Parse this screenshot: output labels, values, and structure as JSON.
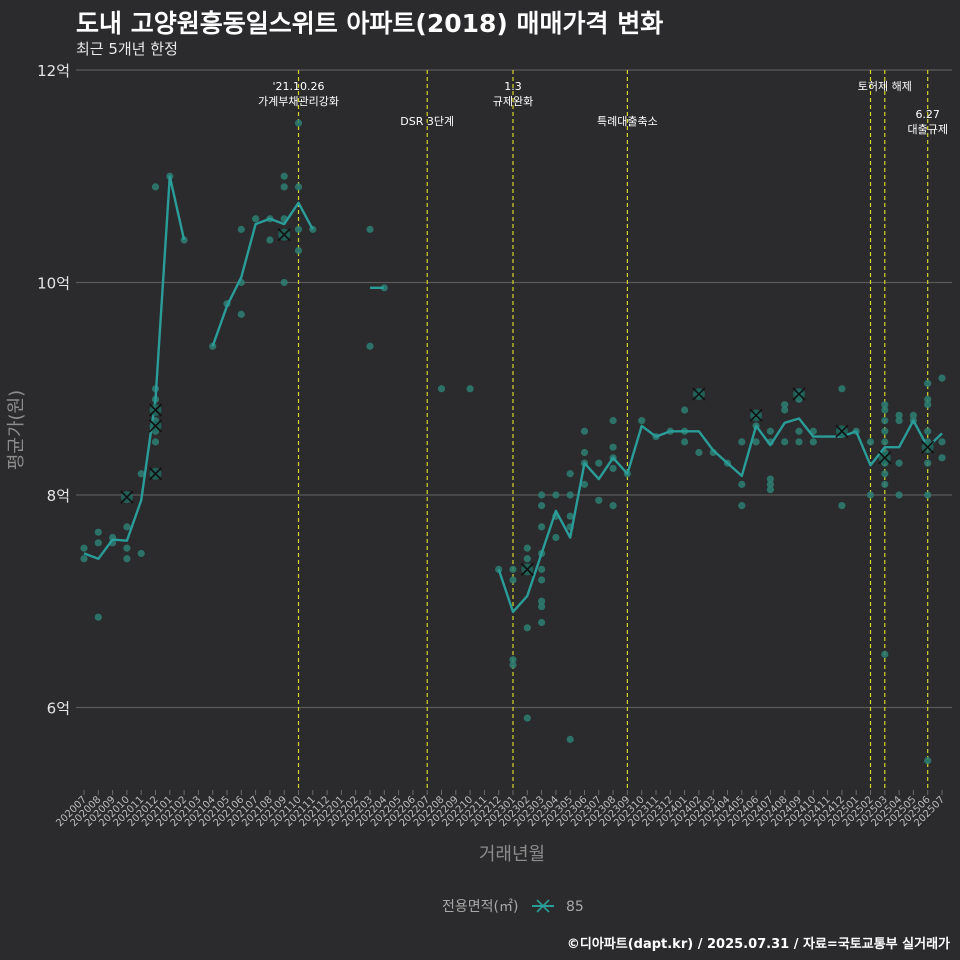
{
  "title": "도내 고양원흥동일스위트 아파트(2018) 매매가격 변화",
  "subtitle": "최근 5개년 한정",
  "caption": "©디아파트(dapt.kr) / 2025.07.31 / 자료=국토교통부 실거래가",
  "colors": {
    "background": "#2b2a2c",
    "series": "#2a9d99",
    "point": "#2e7f74",
    "vline": "#d4d629",
    "grid": "#5a5a5a"
  },
  "chart_data": {
    "type": "line",
    "xlabel": "거래년월",
    "ylabel": "평균가(원)",
    "yticks": [
      {
        "value": 6,
        "label": "6억"
      },
      {
        "value": 8,
        "label": "8억"
      },
      {
        "value": 10,
        "label": "10억"
      },
      {
        "value": 12,
        "label": "12억"
      }
    ],
    "ylim": [
      5.2,
      12.2
    ],
    "grid": true,
    "legend": {
      "title": "전용면적(㎡)",
      "entries": [
        "85"
      ],
      "position": "bottom"
    },
    "categories": [
      "202007",
      "202008",
      "202009",
      "202010",
      "202011",
      "202012",
      "202101",
      "202102",
      "202103",
      "202104",
      "202105",
      "202106",
      "202107",
      "202108",
      "202109",
      "202110",
      "202111",
      "202112",
      "202201",
      "202202",
      "202203",
      "202204",
      "202205",
      "202206",
      "202207",
      "202208",
      "202209",
      "202210",
      "202211",
      "202212",
      "202301",
      "202302",
      "202303",
      "202304",
      "202305",
      "202306",
      "202307",
      "202308",
      "202309",
      "202310",
      "202311",
      "202312",
      "202401",
      "202402",
      "202403",
      "202404",
      "202405",
      "202406",
      "202407",
      "202408",
      "202409",
      "202410",
      "202411",
      "202412",
      "202501",
      "202502",
      "202503",
      "202504",
      "202505",
      "202506",
      "202507"
    ],
    "series": [
      {
        "name": "85",
        "segments": [
          {
            "x": [
              "202007",
              "202008",
              "202009",
              "202010",
              "202011",
              "202012",
              "202101",
              "202102"
            ],
            "values": [
              7.45,
              7.4,
              7.58,
              7.57,
              7.95,
              8.9,
              11.0,
              10.4
            ]
          },
          {
            "x": [
              "202104",
              "202105",
              "202106",
              "202107",
              "202108",
              "202109",
              "202110",
              "202111"
            ],
            "values": [
              9.4,
              9.78,
              10.05,
              10.55,
              10.6,
              10.55,
              10.75,
              10.5
            ]
          },
          {
            "x": [
              "202203",
              "202204"
            ],
            "values": [
              9.95,
              9.95
            ]
          },
          {
            "x": [
              "202212",
              "202301",
              "202302",
              "202303",
              "202304",
              "202305",
              "202306",
              "202307",
              "202308",
              "202309",
              "202310",
              "202311",
              "202312",
              "202401",
              "202402",
              "202403",
              "202404",
              "202405",
              "202406",
              "202407",
              "202408",
              "202409",
              "202410",
              "202411",
              "202412",
              "202501",
              "202502",
              "202503",
              "202504",
              "202505",
              "202506",
              "202507"
            ],
            "values": [
              7.3,
              6.9,
              7.05,
              7.45,
              7.85,
              7.6,
              8.3,
              8.15,
              8.35,
              8.2,
              8.65,
              8.55,
              8.6,
              8.6,
              8.6,
              8.42,
              8.3,
              8.18,
              8.65,
              8.47,
              8.68,
              8.72,
              8.55,
              8.55,
              8.55,
              8.6,
              8.28,
              8.45,
              8.45,
              8.7,
              8.45,
              8.58
            ]
          }
        ]
      }
    ],
    "points": [
      {
        "x": "202007",
        "y": 7.4
      },
      {
        "x": "202007",
        "y": 7.5
      },
      {
        "x": "202008",
        "y": 6.85
      },
      {
        "x": "202008",
        "y": 7.55
      },
      {
        "x": "202008",
        "y": 7.65
      },
      {
        "x": "202009",
        "y": 7.55
      },
      {
        "x": "202009",
        "y": 7.6
      },
      {
        "x": "202010",
        "y": 7.4
      },
      {
        "x": "202010",
        "y": 7.5
      },
      {
        "x": "202010",
        "y": 7.7
      },
      {
        "x": "202011",
        "y": 7.45
      },
      {
        "x": "202011",
        "y": 8.2
      },
      {
        "x": "202012",
        "y": 8.5
      },
      {
        "x": "202012",
        "y": 8.6
      },
      {
        "x": "202012",
        "y": 8.7
      },
      {
        "x": "202012",
        "y": 8.9
      },
      {
        "x": "202012",
        "y": 9.0
      },
      {
        "x": "202012",
        "y": 10.9
      },
      {
        "x": "202101",
        "y": 11.0
      },
      {
        "x": "202102",
        "y": 10.4
      },
      {
        "x": "202104",
        "y": 9.4
      },
      {
        "x": "202105",
        "y": 9.8
      },
      {
        "x": "202106",
        "y": 9.7
      },
      {
        "x": "202106",
        "y": 10.0
      },
      {
        "x": "202106",
        "y": 10.5
      },
      {
        "x": "202107",
        "y": 10.6
      },
      {
        "x": "202108",
        "y": 10.4
      },
      {
        "x": "202108",
        "y": 10.6
      },
      {
        "x": "202109",
        "y": 10.0
      },
      {
        "x": "202109",
        "y": 10.6
      },
      {
        "x": "202109",
        "y": 10.9
      },
      {
        "x": "202109",
        "y": 11.0
      },
      {
        "x": "202110",
        "y": 10.3
      },
      {
        "x": "202110",
        "y": 10.5
      },
      {
        "x": "202110",
        "y": 10.9
      },
      {
        "x": "202110",
        "y": 11.5
      },
      {
        "x": "202111",
        "y": 10.5
      },
      {
        "x": "202203",
        "y": 9.4
      },
      {
        "x": "202203",
        "y": 10.5
      },
      {
        "x": "202204",
        "y": 9.95
      },
      {
        "x": "202208",
        "y": 9.0
      },
      {
        "x": "202210",
        "y": 9.0
      },
      {
        "x": "202212",
        "y": 7.3
      },
      {
        "x": "202301",
        "y": 6.4
      },
      {
        "x": "202301",
        "y": 6.45
      },
      {
        "x": "202301",
        "y": 7.2
      },
      {
        "x": "202301",
        "y": 7.3
      },
      {
        "x": "202302",
        "y": 5.9
      },
      {
        "x": "202302",
        "y": 6.75
      },
      {
        "x": "202302",
        "y": 7.4
      },
      {
        "x": "202302",
        "y": 7.5
      },
      {
        "x": "202303",
        "y": 6.8
      },
      {
        "x": "202303",
        "y": 6.95
      },
      {
        "x": "202303",
        "y": 7.0
      },
      {
        "x": "202303",
        "y": 7.2
      },
      {
        "x": "202303",
        "y": 7.3
      },
      {
        "x": "202303",
        "y": 7.45
      },
      {
        "x": "202303",
        "y": 7.7
      },
      {
        "x": "202303",
        "y": 7.9
      },
      {
        "x": "202303",
        "y": 8.0
      },
      {
        "x": "202304",
        "y": 7.6
      },
      {
        "x": "202304",
        "y": 7.8
      },
      {
        "x": "202304",
        "y": 8.0
      },
      {
        "x": "202305",
        "y": 5.7
      },
      {
        "x": "202305",
        "y": 7.7
      },
      {
        "x": "202305",
        "y": 7.8
      },
      {
        "x": "202305",
        "y": 8.0
      },
      {
        "x": "202305",
        "y": 8.2
      },
      {
        "x": "202306",
        "y": 8.1
      },
      {
        "x": "202306",
        "y": 8.3
      },
      {
        "x": "202306",
        "y": 8.4
      },
      {
        "x": "202306",
        "y": 8.6
      },
      {
        "x": "202307",
        "y": 7.95
      },
      {
        "x": "202307",
        "y": 8.3
      },
      {
        "x": "202308",
        "y": 7.9
      },
      {
        "x": "202308",
        "y": 8.25
      },
      {
        "x": "202308",
        "y": 8.35
      },
      {
        "x": "202308",
        "y": 8.45
      },
      {
        "x": "202308",
        "y": 8.7
      },
      {
        "x": "202309",
        "y": 8.2
      },
      {
        "x": "202310",
        "y": 8.7
      },
      {
        "x": "202311",
        "y": 8.55
      },
      {
        "x": "202312",
        "y": 8.6
      },
      {
        "x": "202401",
        "y": 8.5
      },
      {
        "x": "202401",
        "y": 8.6
      },
      {
        "x": "202401",
        "y": 8.8
      },
      {
        "x": "202402",
        "y": 8.4
      },
      {
        "x": "202402",
        "y": 8.95
      },
      {
        "x": "202403",
        "y": 8.4
      },
      {
        "x": "202404",
        "y": 8.3
      },
      {
        "x": "202405",
        "y": 7.9
      },
      {
        "x": "202405",
        "y": 8.1
      },
      {
        "x": "202405",
        "y": 8.5
      },
      {
        "x": "202406",
        "y": 8.5
      },
      {
        "x": "202406",
        "y": 8.65
      },
      {
        "x": "202406",
        "y": 8.75
      },
      {
        "x": "202407",
        "y": 8.05
      },
      {
        "x": "202407",
        "y": 8.1
      },
      {
        "x": "202407",
        "y": 8.15
      },
      {
        "x": "202407",
        "y": 8.5
      },
      {
        "x": "202407",
        "y": 8.6
      },
      {
        "x": "202408",
        "y": 8.5
      },
      {
        "x": "202408",
        "y": 8.8
      },
      {
        "x": "202408",
        "y": 8.85
      },
      {
        "x": "202409",
        "y": 8.5
      },
      {
        "x": "202409",
        "y": 8.6
      },
      {
        "x": "202409",
        "y": 8.9
      },
      {
        "x": "202409",
        "y": 8.95
      },
      {
        "x": "202410",
        "y": 8.5
      },
      {
        "x": "202410",
        "y": 8.6
      },
      {
        "x": "202412",
        "y": 7.9
      },
      {
        "x": "202412",
        "y": 8.6
      },
      {
        "x": "202412",
        "y": 9.0
      },
      {
        "x": "202501",
        "y": 8.6
      },
      {
        "x": "202502",
        "y": 8.0
      },
      {
        "x": "202502",
        "y": 8.5
      },
      {
        "x": "202503",
        "y": 6.5
      },
      {
        "x": "202503",
        "y": 8.1
      },
      {
        "x": "202503",
        "y": 8.2
      },
      {
        "x": "202503",
        "y": 8.3
      },
      {
        "x": "202503",
        "y": 8.4
      },
      {
        "x": "202503",
        "y": 8.5
      },
      {
        "x": "202503",
        "y": 8.6
      },
      {
        "x": "202503",
        "y": 8.7
      },
      {
        "x": "202503",
        "y": 8.8
      },
      {
        "x": "202503",
        "y": 8.85
      },
      {
        "x": "202504",
        "y": 8.0
      },
      {
        "x": "202504",
        "y": 8.3
      },
      {
        "x": "202504",
        "y": 8.7
      },
      {
        "x": "202504",
        "y": 8.75
      },
      {
        "x": "202505",
        "y": 8.7
      },
      {
        "x": "202505",
        "y": 8.75
      },
      {
        "x": "202506",
        "y": 5.5
      },
      {
        "x": "202506",
        "y": 8.0
      },
      {
        "x": "202506",
        "y": 8.3
      },
      {
        "x": "202506",
        "y": 8.5
      },
      {
        "x": "202506",
        "y": 8.6
      },
      {
        "x": "202506",
        "y": 8.85
      },
      {
        "x": "202506",
        "y": 8.9
      },
      {
        "x": "202506",
        "y": 9.05
      },
      {
        "x": "202507",
        "y": 8.35
      },
      {
        "x": "202507",
        "y": 8.5
      },
      {
        "x": "202507",
        "y": 9.1
      }
    ],
    "highlights": [
      {
        "x": "202010",
        "y": 7.98
      },
      {
        "x": "202012",
        "y": 8.2
      },
      {
        "x": "202012",
        "y": 8.65
      },
      {
        "x": "202012",
        "y": 8.8
      },
      {
        "x": "202109",
        "y": 10.45
      },
      {
        "x": "202302",
        "y": 7.3
      },
      {
        "x": "202402",
        "y": 8.95
      },
      {
        "x": "202406",
        "y": 8.75
      },
      {
        "x": "202409",
        "y": 8.95
      },
      {
        "x": "202412",
        "y": 8.6
      },
      {
        "x": "202503",
        "y": 8.35
      },
      {
        "x": "202506",
        "y": 8.45
      }
    ],
    "events": [
      {
        "x": "202110",
        "lines": [
          "'21.10.26",
          "가계부채관리강화"
        ],
        "row": 0
      },
      {
        "x": "202207",
        "lines": [
          "DSR 3단계"
        ],
        "row": 1
      },
      {
        "x": "202301",
        "lines": [
          "1.3",
          "규제완화"
        ],
        "row": 0
      },
      {
        "x": "202309",
        "lines": [
          "특례대출축소"
        ],
        "row": 1
      },
      {
        "x": "202502",
        "lines": [
          ""
        ],
        "row": 0
      },
      {
        "x": "202503",
        "lines": [
          "토허제 해제"
        ],
        "row": 0
      },
      {
        "x": "202506",
        "lines": [
          "6.27",
          "대출규제"
        ],
        "row": 2
      }
    ]
  }
}
